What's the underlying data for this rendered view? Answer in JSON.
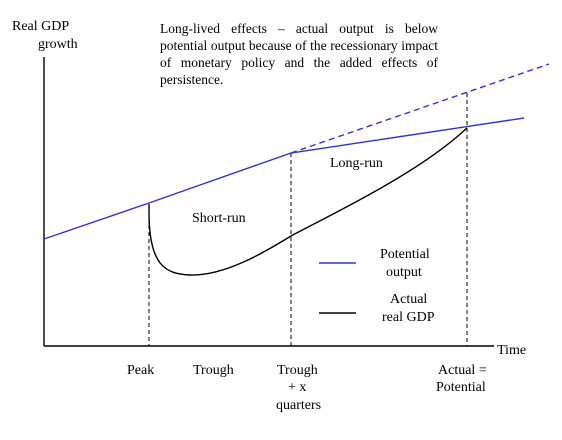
{
  "axes": {
    "y_label_line1": "Real GDP",
    "y_label_line2": "growth",
    "x_label": "Time"
  },
  "annotation": "Long-lived effects – actual output is below potential output because of the recessionary impact of monetary policy and the added effects of persistence.",
  "regions": {
    "short_run": "Short-run",
    "long_run": "Long-run"
  },
  "ticks": {
    "peak": "Peak",
    "trough": "Trough",
    "trough_x_line1": "Trough",
    "trough_x_line2": "+ x",
    "trough_x_line3": "quarters",
    "actual_potential_line1": "Actual =",
    "actual_potential_line2": "Potential"
  },
  "legend": {
    "potential_line1": "Potential",
    "potential_line2": "output",
    "actual_line1": "Actual",
    "actual_line2": "real GDP"
  },
  "colors": {
    "potential": "#3333cc",
    "actual": "#000000",
    "axis": "#000000"
  }
}
